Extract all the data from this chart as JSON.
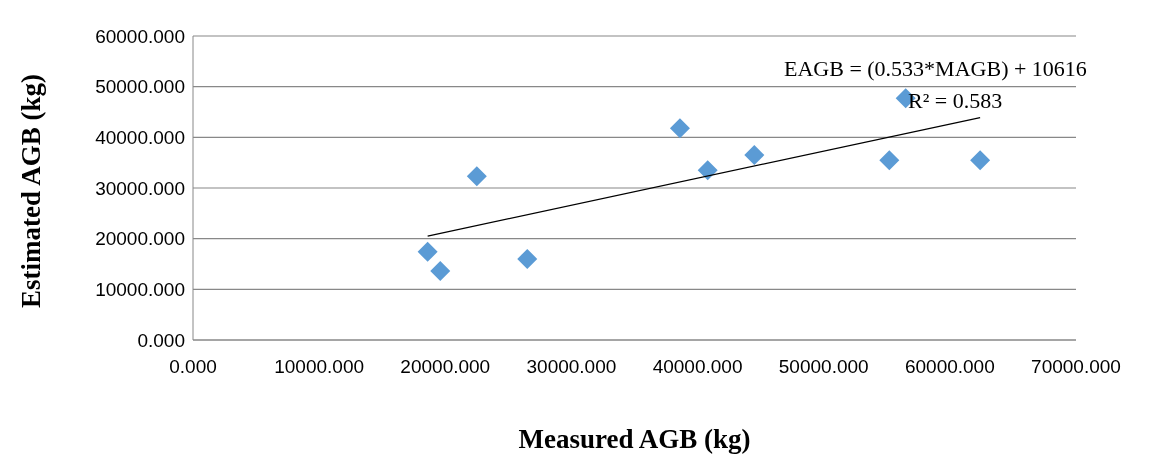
{
  "chart_data": {
    "type": "scatter",
    "xlabel": "Measured AGB (kg)",
    "ylabel": "Estimated AGB (kg)",
    "xlim": [
      0,
      70000
    ],
    "ylim": [
      0,
      60000
    ],
    "xticks": [
      {
        "value": 0,
        "label": "0.000"
      },
      {
        "value": 10000,
        "label": "10000.000"
      },
      {
        "value": 20000,
        "label": "20000.000"
      },
      {
        "value": 30000,
        "label": "30000.000"
      },
      {
        "value": 40000,
        "label": "40000.000"
      },
      {
        "value": 50000,
        "label": "50000.000"
      },
      {
        "value": 60000,
        "label": "60000.000"
      },
      {
        "value": 70000,
        "label": "70000.000"
      }
    ],
    "yticks": [
      {
        "value": 0,
        "label": "0.000"
      },
      {
        "value": 10000,
        "label": "10000.000"
      },
      {
        "value": 20000,
        "label": "20000.000"
      },
      {
        "value": 30000,
        "label": "30000.000"
      },
      {
        "value": 40000,
        "label": "40000.000"
      },
      {
        "value": 50000,
        "label": "50000.000"
      },
      {
        "value": 60000,
        "label": "60000.000"
      }
    ],
    "grid": "y",
    "marker": "diamond",
    "series": [
      {
        "color": "#5b9bd5",
        "x": [
          18600,
          19600,
          22500,
          26500,
          38600,
          40800,
          44500,
          55200,
          56500,
          62400
        ],
        "values": [
          17400,
          13600,
          32300,
          16000,
          41800,
          33500,
          36500,
          35500,
          47700,
          35500
        ]
      },
      {
        "type": "line",
        "color": "#000000",
        "marker": "none",
        "x": [
          18600,
          62400
        ],
        "values": [
          20500,
          43900
        ]
      }
    ],
    "annotations": [
      "EAGB = (0.533*MAGB) + 10616",
      "R² = 0.583"
    ]
  }
}
